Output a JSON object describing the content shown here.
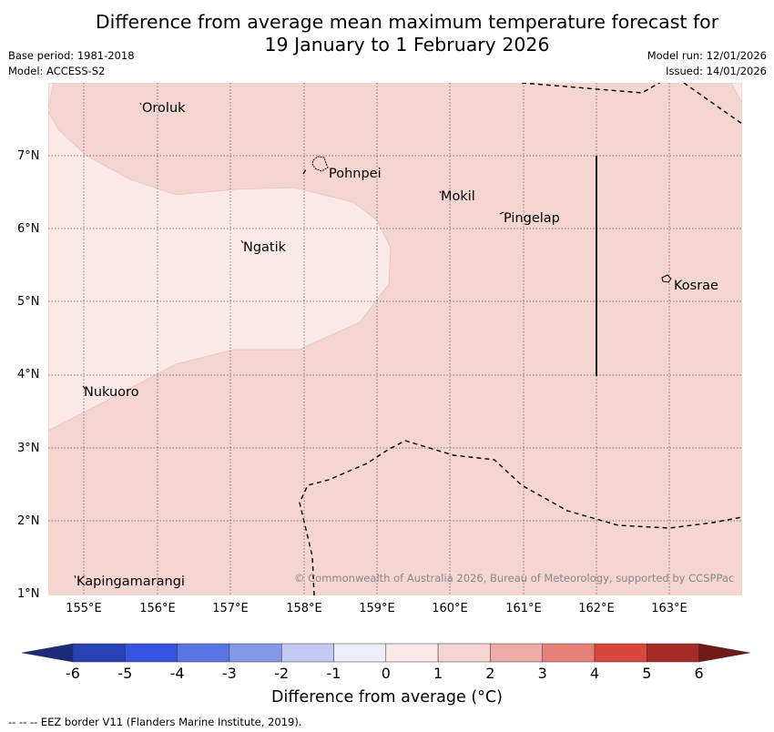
{
  "title": {
    "line1": "Difference from average mean maximum temperature forecast for",
    "line2": "19 January to 1 February 2026"
  },
  "meta": {
    "base_period": "Base period: 1981-2018",
    "model": "Model: ACCESS-S2",
    "model_run": "Model run: 12/01/2026",
    "issued": "Issued: 14/01/2026"
  },
  "map": {
    "lat_labels": [
      "7°N",
      "6°N",
      "5°N",
      "4°N",
      "3°N",
      "2°N",
      "1°N"
    ],
    "lon_labels": [
      "155°E",
      "156°E",
      "157°E",
      "158°E",
      "159°E",
      "160°E",
      "161°E",
      "162°E",
      "163°E"
    ],
    "places": [
      "Oroluk",
      "Pohnpei",
      "Mokil",
      "Pingelap",
      "Ngatik",
      "Kosrae",
      "Nukuoro",
      "Kapingamarangi"
    ],
    "copyright": "© Commonwealth of Australia 2026, Bureau of Meteorology, supported by CCSPPac",
    "colors": {
      "anomaly_0_to_1": "#fbe9e7",
      "anomaly_1_to_2": "#f5d5d2",
      "gridline": "#555555",
      "eez_border": "#000000"
    }
  },
  "colorbar": {
    "ticks": [
      "-6",
      "-5",
      "-4",
      "-3",
      "-2",
      "-1",
      "0",
      "1",
      "2",
      "3",
      "4",
      "5",
      "6"
    ],
    "bins": [
      {
        "range": "< -6",
        "color": "#1c2a7a"
      },
      {
        "range": "-6 to -5",
        "color": "#2941b4"
      },
      {
        "range": "-5 to -4",
        "color": "#3754e0"
      },
      {
        "range": "-4 to -3",
        "color": "#5a74e3"
      },
      {
        "range": "-3 to -2",
        "color": "#8698ea"
      },
      {
        "range": "-2 to -1",
        "color": "#c3cbf4"
      },
      {
        "range": "-1 to 0",
        "color": "#eceef9"
      },
      {
        "range": "0 to 1",
        "color": "#fbe9e7"
      },
      {
        "range": "1 to 2",
        "color": "#f5d5d2"
      },
      {
        "range": "2 to 3",
        "color": "#eeaca9"
      },
      {
        "range": "3 to 4",
        "color": "#e5817a"
      },
      {
        "range": "4 to 5",
        "color": "#d9463c"
      },
      {
        "range": "5 to 6",
        "color": "#a62b26"
      },
      {
        "range": "> 6",
        "color": "#6f1a17"
      }
    ],
    "label": "Difference from average (°C)"
  },
  "footnote": "-- -- -- EEZ border V11 (Flanders Marine Institute, 2019)."
}
